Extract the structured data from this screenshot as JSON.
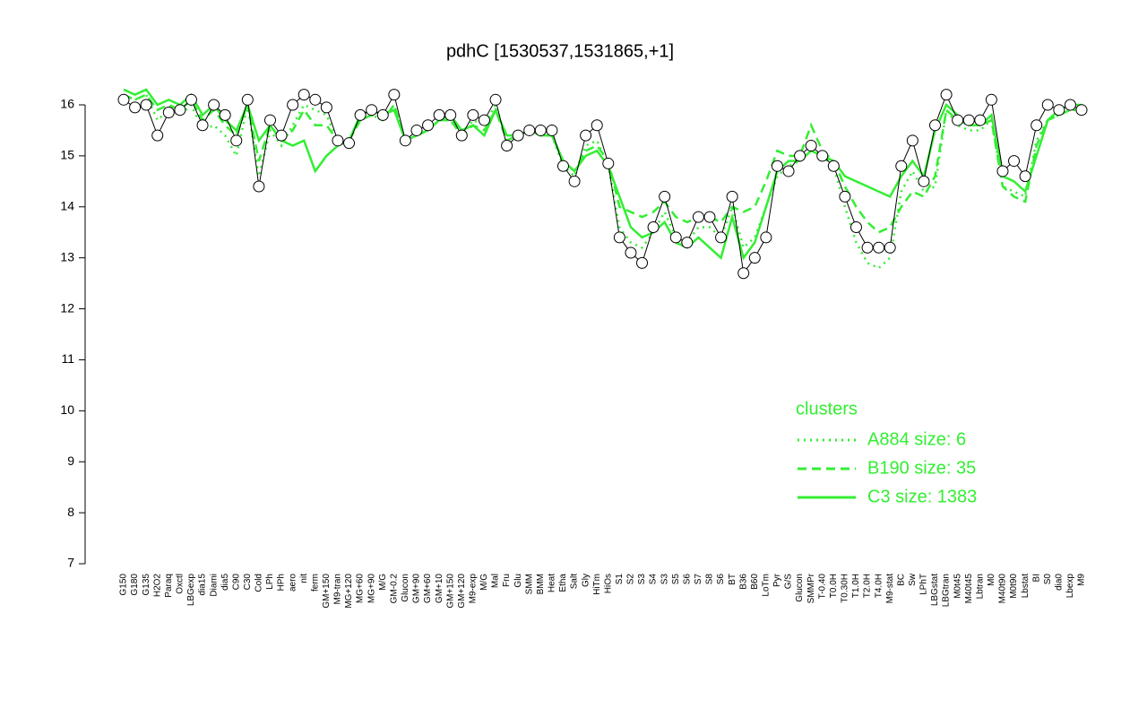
{
  "chart_data": {
    "type": "line",
    "title": "pdhC [1530537,1531865,+1]",
    "categories": [
      "G150",
      "G180",
      "G135",
      "H2O2",
      "Paraq",
      "Oxctl",
      "LBGexp",
      "dia15",
      "Diami",
      "dia5",
      "C90",
      "C30",
      "Cold",
      "LPh",
      "HPh",
      "aero",
      "nit",
      "ferm",
      "GM+150",
      "M9-tran",
      "MG+120",
      "MG+60",
      "MG+90",
      "M/G",
      "GM-0.2",
      "Glucon",
      "GM+90",
      "GM+60",
      "GM+10",
      "GM+150",
      "GM+120",
      "M9-exp",
      "M/G",
      "Mal",
      "Fru",
      "Glu",
      "SMM",
      "BMM",
      "Heat",
      "Etha",
      "Salt",
      "Gly",
      "HiTm",
      "HiOs",
      "S1",
      "S2",
      "S3",
      "S4",
      "S3",
      "S5",
      "S6",
      "S7",
      "S8",
      "S6",
      "BT",
      "B36",
      "B60",
      "LoTm",
      "Pyr",
      "G/S",
      "Glucon",
      "SMMPr",
      "T-0.40",
      "T0.0H",
      "T0.30H",
      "T1.0H",
      "T2.0H",
      "T4.0H",
      "M9-stat",
      "BC",
      "Sw",
      "LPhT",
      "LBGstat",
      "LBGtran",
      "M0t45",
      "M40t45",
      "Lbtran",
      "M0",
      "M40t90",
      "M0t90",
      "Lbstat",
      "BI",
      "S0",
      "dia0",
      "Lbexp",
      "M9"
    ],
    "values": [
      16.1,
      15.95,
      16.0,
      15.4,
      15.85,
      15.9,
      16.1,
      15.6,
      16.0,
      15.8,
      15.3,
      16.1,
      14.4,
      15.7,
      15.4,
      16.0,
      16.2,
      16.1,
      15.95,
      15.3,
      15.25,
      15.8,
      15.9,
      15.8,
      16.2,
      15.3,
      15.5,
      15.6,
      15.8,
      15.8,
      15.4,
      15.8,
      15.7,
      16.1,
      15.2,
      15.4,
      15.5,
      15.5,
      15.5,
      14.8,
      14.5,
      15.4,
      15.6,
      14.85,
      13.4,
      13.1,
      12.9,
      13.6,
      14.2,
      13.4,
      13.3,
      13.8,
      13.8,
      13.4,
      14.2,
      12.7,
      13.0,
      13.4,
      14.8,
      14.7,
      15.0,
      15.2,
      15.0,
      14.8,
      14.2,
      13.6,
      13.2,
      13.2,
      13.2,
      14.8,
      15.3,
      14.5,
      15.6,
      16.2,
      15.7,
      15.7,
      15.7,
      16.1,
      14.7,
      14.9,
      14.6,
      15.6,
      16.0,
      15.9,
      16.0,
      15.9
    ],
    "marker_fill": "#ffffff",
    "legend_title": "clusters",
    "series": [
      {
        "name": "A884 size: 6",
        "color": "#33ee33",
        "style": "dotted",
        "values": [
          16.2,
          16.1,
          16.2,
          15.7,
          15.9,
          15.8,
          16.0,
          15.5,
          15.6,
          15.4,
          15.0,
          16.0,
          14.6,
          15.5,
          15.2,
          15.6,
          16.0,
          15.9,
          15.8,
          15.3,
          15.3,
          15.7,
          15.8,
          15.7,
          16.0,
          15.3,
          15.4,
          15.5,
          15.7,
          15.7,
          15.4,
          15.7,
          15.6,
          16.0,
          15.3,
          15.4,
          15.5,
          15.4,
          15.4,
          14.8,
          14.6,
          15.2,
          15.3,
          14.8,
          13.6,
          13.3,
          13.2,
          13.5,
          13.9,
          13.4,
          13.3,
          13.6,
          13.6,
          13.4,
          14.0,
          13.2,
          13.4,
          14.0,
          14.6,
          14.8,
          14.9,
          15.1,
          15.0,
          14.8,
          14.0,
          13.3,
          12.9,
          12.8,
          13.0,
          14.3,
          14.7,
          14.3,
          14.4,
          15.9,
          15.6,
          15.5,
          15.5,
          15.7,
          14.4,
          14.3,
          14.2,
          15.3,
          15.7,
          15.8,
          15.9,
          15.9
        ]
      },
      {
        "name": "B190 size: 35",
        "color": "#33ee33",
        "style": "dashed",
        "values": [
          16.2,
          16.1,
          16.2,
          15.9,
          16.0,
          15.9,
          16.1,
          15.7,
          15.9,
          15.6,
          15.4,
          16.0,
          14.9,
          15.6,
          15.3,
          15.5,
          15.9,
          15.6,
          15.6,
          15.3,
          15.3,
          15.7,
          15.8,
          15.7,
          16.0,
          15.3,
          15.4,
          15.5,
          15.7,
          15.7,
          15.4,
          15.6,
          15.5,
          15.9,
          15.3,
          15.4,
          15.5,
          15.4,
          15.4,
          14.9,
          14.7,
          15.1,
          15.2,
          14.9,
          14.0,
          13.9,
          13.8,
          13.9,
          14.1,
          13.8,
          13.7,
          13.8,
          13.8,
          13.7,
          14.0,
          13.9,
          14.0,
          14.5,
          15.1,
          15.0,
          15.0,
          15.6,
          15.1,
          14.9,
          14.4,
          14.0,
          13.7,
          13.5,
          13.6,
          14.0,
          14.3,
          14.2,
          14.6,
          15.9,
          15.7,
          15.6,
          15.6,
          15.7,
          14.4,
          14.2,
          14.1,
          15.2,
          15.7,
          15.8,
          15.9,
          15.9
        ]
      },
      {
        "name": "C3 size: 1383",
        "color": "#33ee33",
        "style": "solid",
        "values": [
          16.3,
          16.2,
          16.3,
          16.0,
          16.1,
          16.0,
          16.2,
          15.8,
          16.0,
          15.7,
          15.5,
          16.0,
          15.3,
          15.6,
          15.3,
          15.2,
          15.3,
          14.7,
          15.0,
          15.2,
          15.3,
          15.8,
          15.9,
          15.8,
          15.9,
          15.3,
          15.4,
          15.5,
          15.7,
          15.8,
          15.5,
          15.6,
          15.4,
          15.9,
          15.4,
          15.4,
          15.5,
          15.4,
          15.4,
          14.9,
          14.7,
          15.0,
          15.1,
          14.8,
          14.2,
          13.6,
          13.4,
          13.5,
          13.7,
          13.3,
          13.2,
          13.4,
          13.2,
          13.0,
          13.8,
          13.0,
          13.3,
          14.0,
          14.7,
          14.9,
          14.9,
          15.1,
          15.0,
          14.9,
          14.6,
          14.5,
          14.4,
          14.3,
          14.2,
          14.6,
          14.9,
          14.6,
          15.5,
          16.0,
          15.8,
          15.6,
          15.6,
          15.8,
          14.6,
          14.5,
          14.3,
          15.0,
          15.7,
          15.9,
          16.0,
          16.0
        ]
      }
    ],
    "ylim": [
      7,
      16
    ],
    "yticks": [
      7,
      8,
      9,
      10,
      11,
      12,
      13,
      14,
      15,
      16
    ],
    "grid": false
  }
}
